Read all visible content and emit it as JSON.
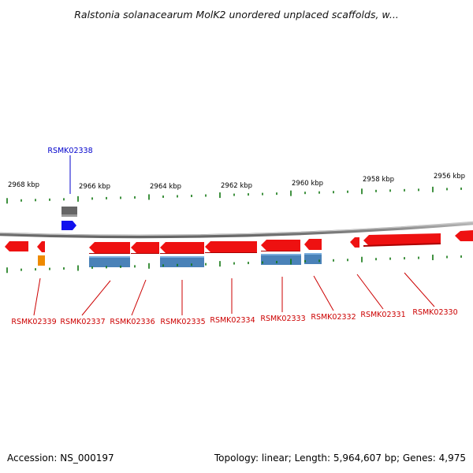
{
  "title": "Ralstonia solanacearum MolK2 unordered unplaced scaffolds, w...",
  "footer": {
    "accession": "Accession: NS_000197",
    "summary": "Topology: linear; Length: 5,964,607 bp; Genes: 4,975"
  },
  "colors": {
    "forward_gene": "#ee1111",
    "reverse_gene": "#ee1111",
    "cds_reverse": "#4a82b8",
    "rna_forward": "#1111ee",
    "pseudo": "#666666",
    "other": "#ee8a00",
    "axis": "#888888",
    "tick": "#117711",
    "label_red": "#cc0000",
    "label_blue": "#0000cc"
  },
  "scale": {
    "unit": "kbp",
    "direction": "decreasing-left-to-right",
    "major_ticks": [
      {
        "label": "2968 kbp"
      },
      {
        "label": "2966 kbp"
      },
      {
        "label": "2964 kbp"
      },
      {
        "label": "2962 kbp"
      },
      {
        "label": "2960 kbp"
      },
      {
        "label": "2958 kbp"
      },
      {
        "label": "2956 kbp"
      }
    ]
  },
  "genes": [
    {
      "id": "RSMK02339",
      "strand": "reverse",
      "track": "gene",
      "label_color": "label_red"
    },
    {
      "id": "RSMK02338",
      "strand": "forward",
      "track": "rna",
      "label_color": "label_blue"
    },
    {
      "id": "RSMK02337",
      "strand": "reverse",
      "track": "gene",
      "label_color": "label_red"
    },
    {
      "id": "RSMK02336",
      "strand": "reverse",
      "track": "gene",
      "label_color": "label_red"
    },
    {
      "id": "RSMK02335",
      "strand": "reverse",
      "track": "gene",
      "label_color": "label_red"
    },
    {
      "id": "RSMK02334",
      "strand": "reverse",
      "track": "gene",
      "label_color": "label_red"
    },
    {
      "id": "RSMK02333",
      "strand": "reverse",
      "track": "gene",
      "label_color": "label_red"
    },
    {
      "id": "RSMK02332",
      "strand": "reverse",
      "track": "gene",
      "label_color": "label_red"
    },
    {
      "id": "RSMK02331",
      "strand": "reverse",
      "track": "gene",
      "label_color": "label_red"
    },
    {
      "id": "RSMK02330",
      "strand": "reverse",
      "track": "gene",
      "label_color": "label_red"
    }
  ]
}
